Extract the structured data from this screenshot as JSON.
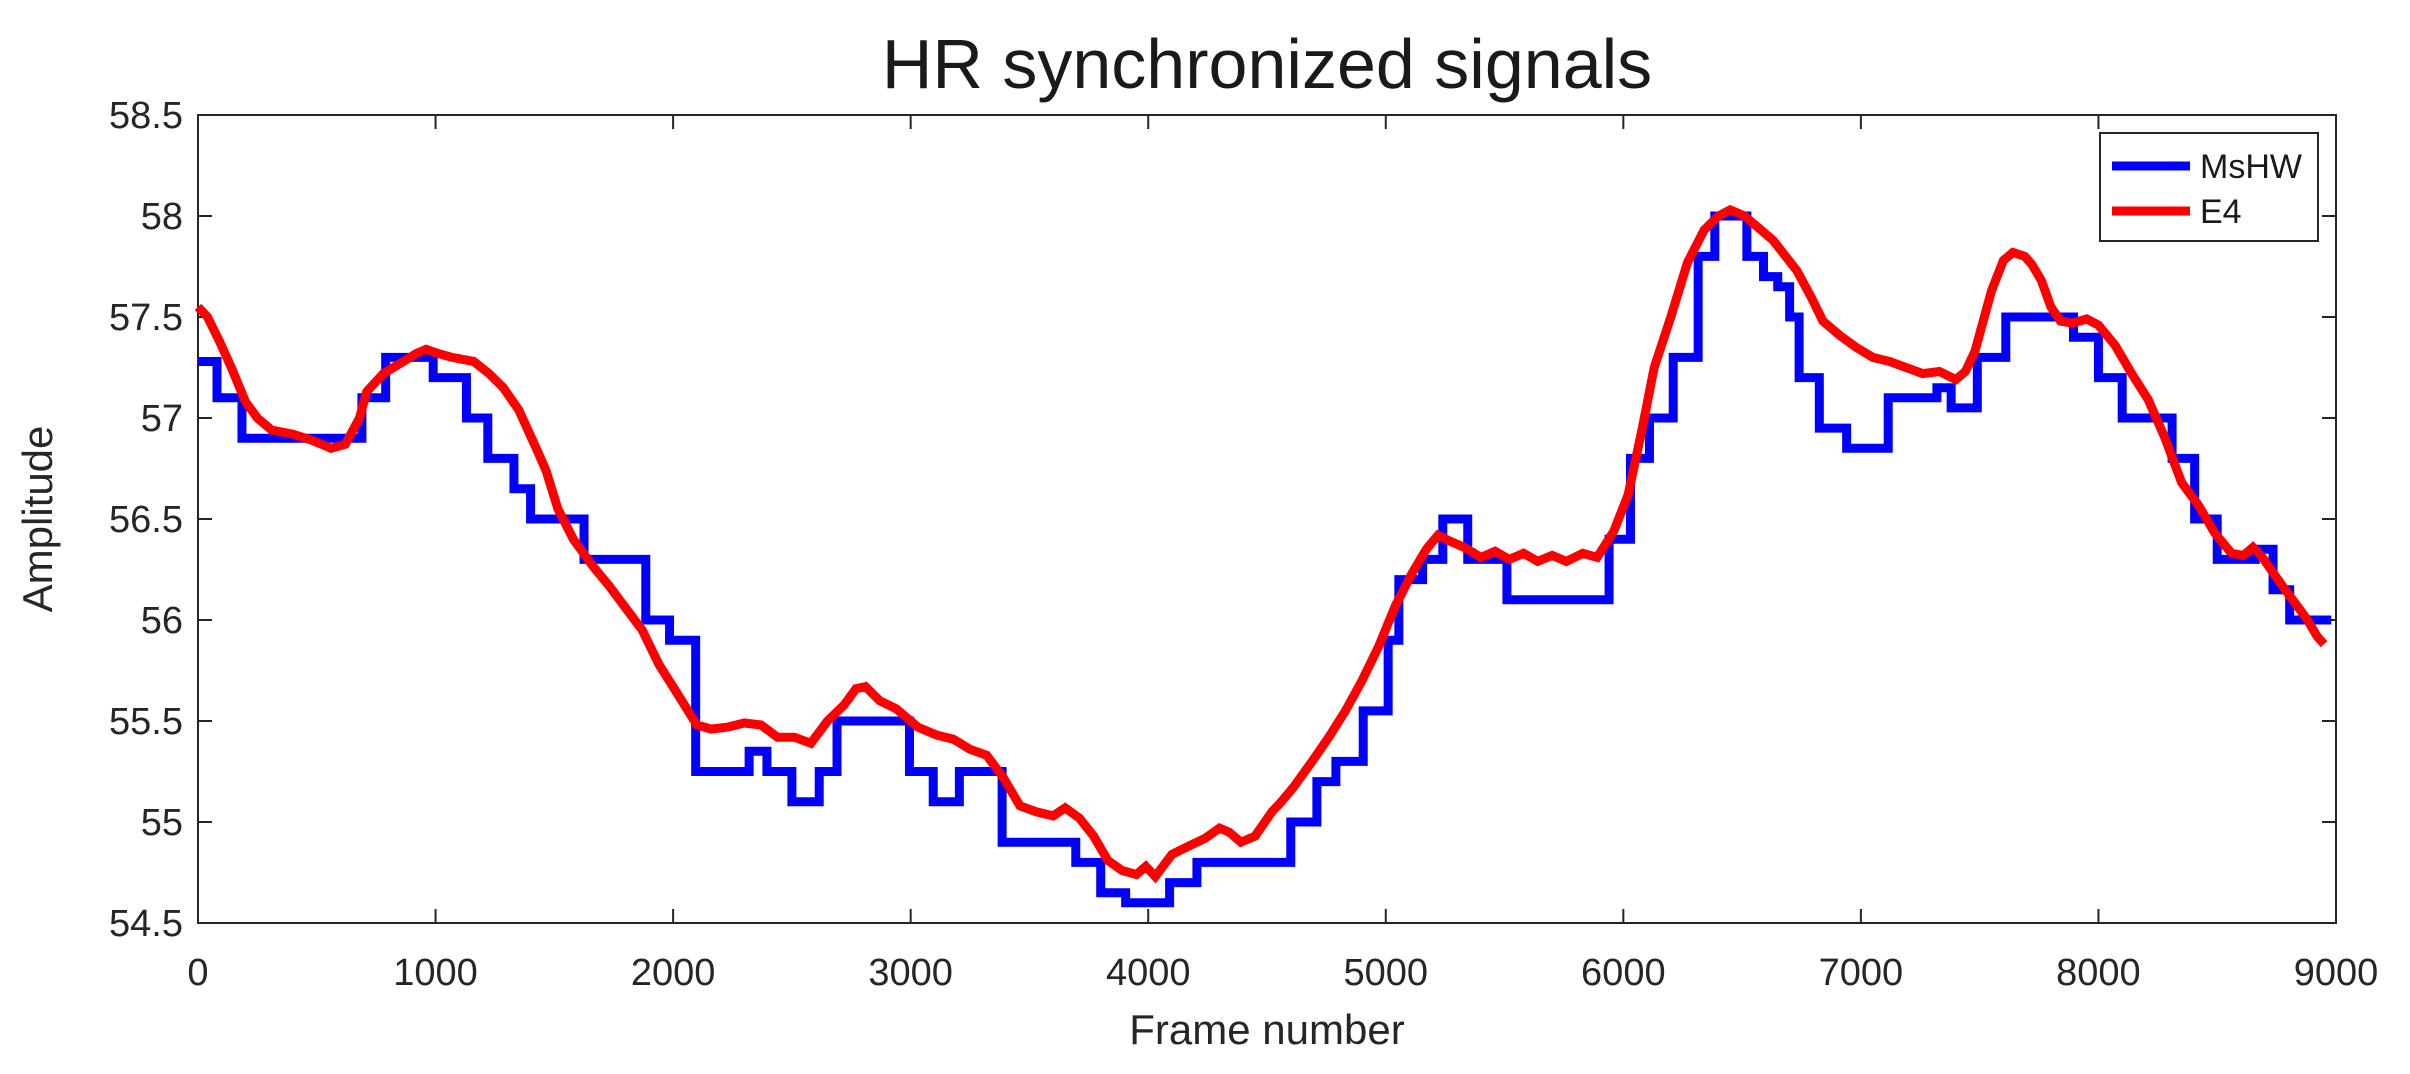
{
  "figure": {
    "background": "#ffffff",
    "axis_color": "#262626"
  },
  "chart_data": {
    "type": "line",
    "title": "HR synchronized signals",
    "xlabel": "Frame number",
    "ylabel": "Amplitude",
    "xlim": [
      0,
      9000
    ],
    "ylim": [
      54.5,
      58.5
    ],
    "xticks": [
      0,
      1000,
      2000,
      3000,
      4000,
      5000,
      6000,
      7000,
      8000,
      9000
    ],
    "xtick_labels": [
      "0",
      "1000",
      "2000",
      "3000",
      "4000",
      "5000",
      "6000",
      "7000",
      "8000",
      "9000"
    ],
    "yticks": [
      54.5,
      55,
      55.5,
      56,
      56.5,
      57,
      57.5,
      58,
      58.5
    ],
    "ytick_labels": [
      "54.5",
      "55",
      "55.5",
      "56",
      "56.5",
      "57",
      "57.5",
      "58",
      "58.5"
    ],
    "grid": false,
    "legend_position": "top-right",
    "series": [
      {
        "id": "mshw",
        "name": "MsHW",
        "color": "#0000ff",
        "line_width": 9,
        "interpolation": "step",
        "end_frame": 8980,
        "steps": [
          [
            0,
            57.28
          ],
          [
            80,
            57.1
          ],
          [
            185,
            56.9
          ],
          [
            690,
            57.1
          ],
          [
            790,
            57.3
          ],
          [
            990,
            57.2
          ],
          [
            1130,
            57.0
          ],
          [
            1220,
            56.8
          ],
          [
            1330,
            56.65
          ],
          [
            1400,
            56.5
          ],
          [
            1625,
            56.3
          ],
          [
            1885,
            56.0
          ],
          [
            1985,
            55.9
          ],
          [
            2095,
            55.25
          ],
          [
            2320,
            55.35
          ],
          [
            2395,
            55.25
          ],
          [
            2500,
            55.1
          ],
          [
            2615,
            55.25
          ],
          [
            2690,
            55.5
          ],
          [
            2995,
            55.25
          ],
          [
            3095,
            55.1
          ],
          [
            3205,
            55.25
          ],
          [
            3385,
            54.9
          ],
          [
            3695,
            54.8
          ],
          [
            3800,
            54.65
          ],
          [
            3905,
            54.6
          ],
          [
            4090,
            54.7
          ],
          [
            4205,
            54.8
          ],
          [
            4600,
            55.0
          ],
          [
            4710,
            55.2
          ],
          [
            4790,
            55.3
          ],
          [
            4905,
            55.55
          ],
          [
            5010,
            55.9
          ],
          [
            5055,
            56.2
          ],
          [
            5155,
            56.3
          ],
          [
            5240,
            56.5
          ],
          [
            5345,
            56.3
          ],
          [
            5510,
            56.1
          ],
          [
            5940,
            56.4
          ],
          [
            6030,
            56.8
          ],
          [
            6110,
            57.0
          ],
          [
            6210,
            57.3
          ],
          [
            6315,
            57.8
          ],
          [
            6385,
            58.0
          ],
          [
            6520,
            57.8
          ],
          [
            6590,
            57.7
          ],
          [
            6650,
            57.65
          ],
          [
            6700,
            57.5
          ],
          [
            6740,
            57.2
          ],
          [
            6825,
            56.95
          ],
          [
            6940,
            56.85
          ],
          [
            7115,
            57.1
          ],
          [
            7320,
            57.15
          ],
          [
            7380,
            57.05
          ],
          [
            7490,
            57.3
          ],
          [
            7610,
            57.5
          ],
          [
            7895,
            57.4
          ],
          [
            8000,
            57.2
          ],
          [
            8100,
            57.0
          ],
          [
            8310,
            56.8
          ],
          [
            8405,
            56.5
          ],
          [
            8500,
            56.3
          ],
          [
            8660,
            56.35
          ],
          [
            8735,
            56.15
          ],
          [
            8805,
            56.0
          ]
        ]
      },
      {
        "id": "e4",
        "name": "E4",
        "color": "#ff0000",
        "line_width": 9,
        "interpolation": "linear",
        "points": [
          [
            0,
            57.55
          ],
          [
            40,
            57.5
          ],
          [
            90,
            57.38
          ],
          [
            140,
            57.25
          ],
          [
            200,
            57.08
          ],
          [
            250,
            57.0
          ],
          [
            310,
            56.94
          ],
          [
            400,
            56.92
          ],
          [
            480,
            56.89
          ],
          [
            560,
            56.85
          ],
          [
            620,
            56.87
          ],
          [
            680,
            57.0
          ],
          [
            710,
            57.13
          ],
          [
            780,
            57.22
          ],
          [
            850,
            57.27
          ],
          [
            920,
            57.32
          ],
          [
            960,
            57.34
          ],
          [
            1010,
            57.32
          ],
          [
            1070,
            57.3
          ],
          [
            1160,
            57.28
          ],
          [
            1225,
            57.22
          ],
          [
            1285,
            57.15
          ],
          [
            1350,
            57.04
          ],
          [
            1420,
            56.86
          ],
          [
            1465,
            56.74
          ],
          [
            1515,
            56.55
          ],
          [
            1580,
            56.4
          ],
          [
            1660,
            56.27
          ],
          [
            1730,
            56.17
          ],
          [
            1800,
            56.06
          ],
          [
            1870,
            55.95
          ],
          [
            1940,
            55.78
          ],
          [
            2010,
            55.65
          ],
          [
            2100,
            55.48
          ],
          [
            2160,
            55.46
          ],
          [
            2230,
            55.47
          ],
          [
            2300,
            55.49
          ],
          [
            2370,
            55.48
          ],
          [
            2440,
            55.42
          ],
          [
            2510,
            55.42
          ],
          [
            2580,
            55.39
          ],
          [
            2650,
            55.5
          ],
          [
            2720,
            55.58
          ],
          [
            2770,
            55.66
          ],
          [
            2810,
            55.67
          ],
          [
            2870,
            55.6
          ],
          [
            2940,
            55.56
          ],
          [
            3030,
            55.47
          ],
          [
            3110,
            55.43
          ],
          [
            3180,
            55.41
          ],
          [
            3250,
            55.36
          ],
          [
            3320,
            55.33
          ],
          [
            3390,
            55.22
          ],
          [
            3460,
            55.08
          ],
          [
            3530,
            55.05
          ],
          [
            3600,
            55.03
          ],
          [
            3650,
            55.07
          ],
          [
            3710,
            55.02
          ],
          [
            3770,
            54.93
          ],
          [
            3830,
            54.81
          ],
          [
            3890,
            54.76
          ],
          [
            3950,
            54.74
          ],
          [
            3990,
            54.78
          ],
          [
            4030,
            54.73
          ],
          [
            4100,
            54.84
          ],
          [
            4170,
            54.88
          ],
          [
            4240,
            54.92
          ],
          [
            4300,
            54.97
          ],
          [
            4340,
            54.95
          ],
          [
            4390,
            54.9
          ],
          [
            4450,
            54.93
          ],
          [
            4520,
            55.05
          ],
          [
            4560,
            55.1
          ],
          [
            4610,
            55.17
          ],
          [
            4690,
            55.3
          ],
          [
            4760,
            55.42
          ],
          [
            4830,
            55.55
          ],
          [
            4900,
            55.7
          ],
          [
            4970,
            55.87
          ],
          [
            5040,
            56.07
          ],
          [
            5110,
            56.23
          ],
          [
            5170,
            56.35
          ],
          [
            5220,
            56.42
          ],
          [
            5270,
            56.39
          ],
          [
            5330,
            56.36
          ],
          [
            5400,
            56.31
          ],
          [
            5460,
            56.34
          ],
          [
            5520,
            56.3
          ],
          [
            5580,
            56.33
          ],
          [
            5640,
            56.29
          ],
          [
            5700,
            56.32
          ],
          [
            5760,
            56.29
          ],
          [
            5830,
            56.33
          ],
          [
            5890,
            56.31
          ],
          [
            5960,
            56.44
          ],
          [
            6020,
            56.62
          ],
          [
            6080,
            56.95
          ],
          [
            6130,
            57.25
          ],
          [
            6200,
            57.5
          ],
          [
            6270,
            57.77
          ],
          [
            6340,
            57.93
          ],
          [
            6400,
            58.0
          ],
          [
            6450,
            58.03
          ],
          [
            6510,
            58.0
          ],
          [
            6560,
            57.95
          ],
          [
            6630,
            57.88
          ],
          [
            6730,
            57.73
          ],
          [
            6790,
            57.6
          ],
          [
            6840,
            57.48
          ],
          [
            6910,
            57.41
          ],
          [
            6980,
            57.35
          ],
          [
            7050,
            57.3
          ],
          [
            7120,
            57.28
          ],
          [
            7190,
            57.25
          ],
          [
            7260,
            57.22
          ],
          [
            7330,
            57.23
          ],
          [
            7400,
            57.19
          ],
          [
            7440,
            57.23
          ],
          [
            7480,
            57.33
          ],
          [
            7550,
            57.63
          ],
          [
            7600,
            57.78
          ],
          [
            7640,
            57.82
          ],
          [
            7690,
            57.8
          ],
          [
            7720,
            57.76
          ],
          [
            7760,
            57.68
          ],
          [
            7800,
            57.55
          ],
          [
            7840,
            57.48
          ],
          [
            7890,
            57.47
          ],
          [
            7950,
            57.49
          ],
          [
            8000,
            57.46
          ],
          [
            8070,
            57.36
          ],
          [
            8140,
            57.22
          ],
          [
            8210,
            57.09
          ],
          [
            8280,
            56.9
          ],
          [
            8350,
            56.68
          ],
          [
            8420,
            56.57
          ],
          [
            8490,
            56.43
          ],
          [
            8560,
            56.33
          ],
          [
            8610,
            56.32
          ],
          [
            8650,
            56.36
          ],
          [
            8690,
            56.31
          ],
          [
            8720,
            56.26
          ],
          [
            8780,
            56.16
          ],
          [
            8830,
            56.08
          ],
          [
            8880,
            56.0
          ],
          [
            8920,
            55.92
          ],
          [
            8950,
            55.88
          ]
        ]
      }
    ]
  }
}
